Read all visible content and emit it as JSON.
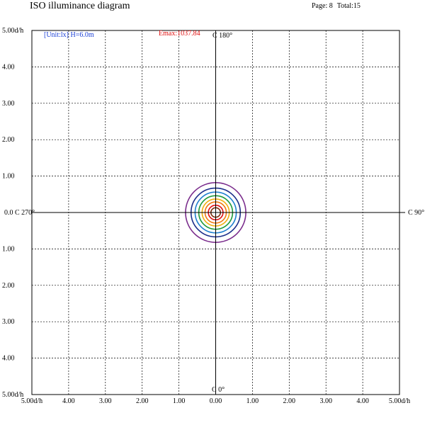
{
  "header": {
    "title": "ISO illuminance diagram",
    "page": "Page: 8",
    "total": "Total:15"
  },
  "annotations": {
    "unit": "[Unit:lx]  H=6.0m",
    "emax": "Emax:1037.84"
  },
  "axis_labels": {
    "c0": "C 0°",
    "c90": "C 90°",
    "c180": "C 180°",
    "c270": "0.0 C 270°"
  },
  "colors": {
    "grid": "#000000",
    "axis": "#000000",
    "unit_text": "#1a3fd6",
    "emax_text": "#e01010"
  },
  "chart_data": {
    "type": "contour",
    "title": "ISO illuminance diagram",
    "unit": "lx",
    "mounting_height_m": 6.0,
    "emax": 1037.84,
    "xlim": [
      -5,
      5
    ],
    "ylim": [
      -5,
      5
    ],
    "grid": true,
    "grid_style": "dashed",
    "x_tick_labels": [
      "5.00d/h",
      "4.00",
      "3.00",
      "2.00",
      "1.00",
      "0.00",
      "1.00",
      "2.00",
      "3.00",
      "4.00",
      "5.00d/h"
    ],
    "y_tick_labels": [
      "5.00d/h",
      "4.00",
      "3.00",
      "2.00",
      "1.00",
      "0.0",
      "1.00",
      "2.00",
      "3.00",
      "4.00",
      "5.00d/h"
    ],
    "contours": [
      {
        "color": "#7a2c8c",
        "radius": 0.82
      },
      {
        "color": "#1c2f8a",
        "radius": 0.67
      },
      {
        "color": "#1f7fcf",
        "radius": 0.56
      },
      {
        "color": "#1e9a3a",
        "radius": 0.46
      },
      {
        "color": "#f0b010",
        "radius": 0.37
      },
      {
        "color": "#f07a10",
        "radius": 0.29
      },
      {
        "color": "#e01010",
        "radius": 0.2
      },
      {
        "color": "#7a2c0c",
        "radius": 0.13
      }
    ]
  }
}
